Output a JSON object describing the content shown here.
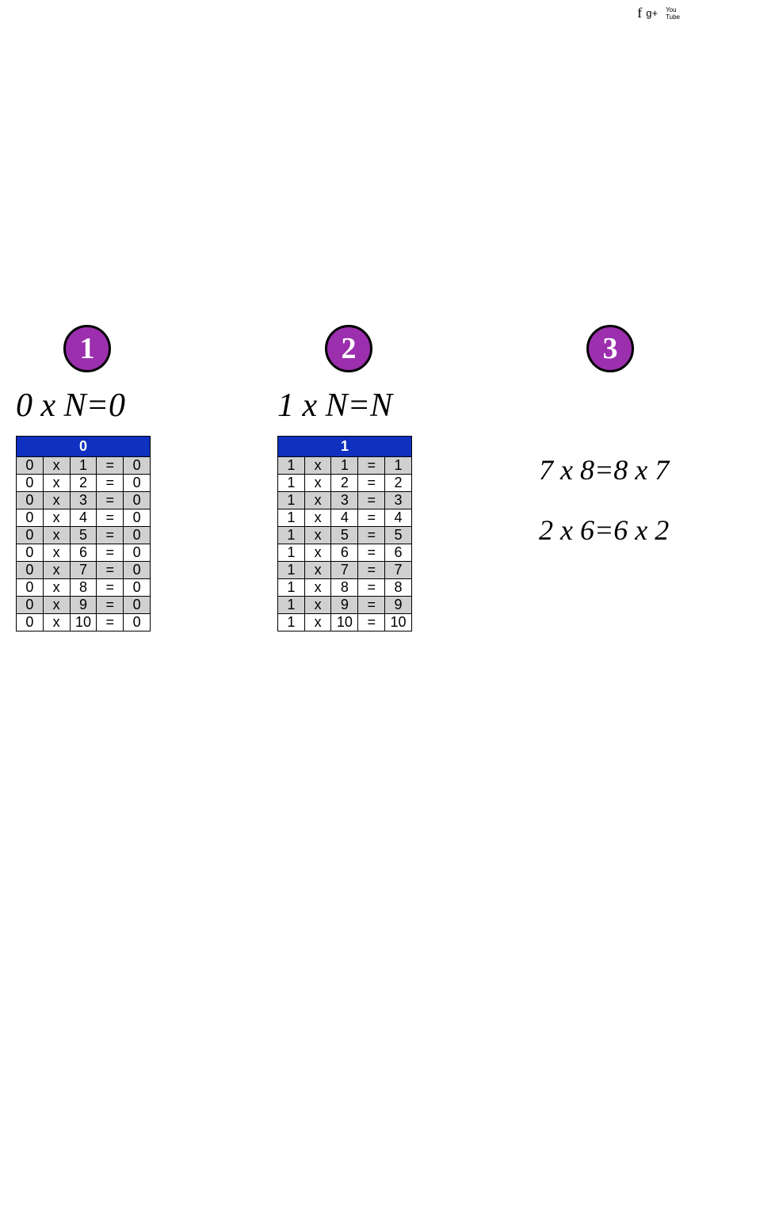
{
  "social": {
    "facebook": {
      "label": "f",
      "color": "#3b5998"
    },
    "google": {
      "label": "g+",
      "color": "#d34836"
    },
    "twitter": {
      "label": "",
      "color": "#1da1f2"
    },
    "youtube": {
      "label": "You\nTube",
      "color": "#c4302b"
    }
  },
  "badge_color": "#9b2fae",
  "columns": {
    "c1": {
      "badge": "1",
      "formula": "0 x N=0",
      "table": {
        "header": "0",
        "header_bg": "#1030c0",
        "rows": [
          [
            "0",
            "x",
            "1",
            "=",
            "0"
          ],
          [
            "0",
            "x",
            "2",
            "=",
            "0"
          ],
          [
            "0",
            "x",
            "3",
            "=",
            "0"
          ],
          [
            "0",
            "x",
            "4",
            "=",
            "0"
          ],
          [
            "0",
            "x",
            "5",
            "=",
            "0"
          ],
          [
            "0",
            "x",
            "6",
            "=",
            "0"
          ],
          [
            "0",
            "x",
            "7",
            "=",
            "0"
          ],
          [
            "0",
            "x",
            "8",
            "=",
            "0"
          ],
          [
            "0",
            "x",
            "9",
            "=",
            "0"
          ],
          [
            "0",
            "x",
            "10",
            "=",
            "0"
          ]
        ]
      }
    },
    "c2": {
      "badge": "2",
      "formula": "1 x N=N",
      "table": {
        "header": "1",
        "header_bg": "#1030c0",
        "rows": [
          [
            "1",
            "x",
            "1",
            "=",
            "1"
          ],
          [
            "1",
            "x",
            "2",
            "=",
            "2"
          ],
          [
            "1",
            "x",
            "3",
            "=",
            "3"
          ],
          [
            "1",
            "x",
            "4",
            "=",
            "4"
          ],
          [
            "1",
            "x",
            "5",
            "=",
            "5"
          ],
          [
            "1",
            "x",
            "6",
            "=",
            "6"
          ],
          [
            "1",
            "x",
            "7",
            "=",
            "7"
          ],
          [
            "1",
            "x",
            "8",
            "=",
            "8"
          ],
          [
            "1",
            "x",
            "9",
            "=",
            "9"
          ],
          [
            "1",
            "x",
            "10",
            "=",
            "10"
          ]
        ]
      }
    },
    "c3": {
      "badge": "3",
      "lines": [
        "7 x 8=8 x 7",
        "2 x 6=6 x 2"
      ]
    }
  }
}
